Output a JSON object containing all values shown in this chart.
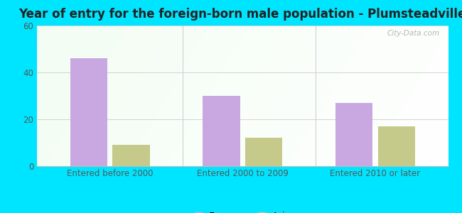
{
  "title": "Year of entry for the foreign-born male population - Plumsteadville",
  "categories": [
    "Entered before 2000",
    "Entered 2000 to 2009",
    "Entered 2010 or later"
  ],
  "europe_values": [
    46,
    30,
    27
  ],
  "asia_values": [
    9,
    12,
    17
  ],
  "europe_color": "#c9a8e2",
  "asia_color": "#c5c98a",
  "ylim": [
    0,
    60
  ],
  "yticks": [
    0,
    20,
    40,
    60
  ],
  "bar_width": 0.28,
  "figure_bg": "#00e5ff",
  "title_fontsize": 12,
  "legend_fontsize": 9,
  "tick_fontsize": 8.5,
  "watermark": "City-Data.com"
}
